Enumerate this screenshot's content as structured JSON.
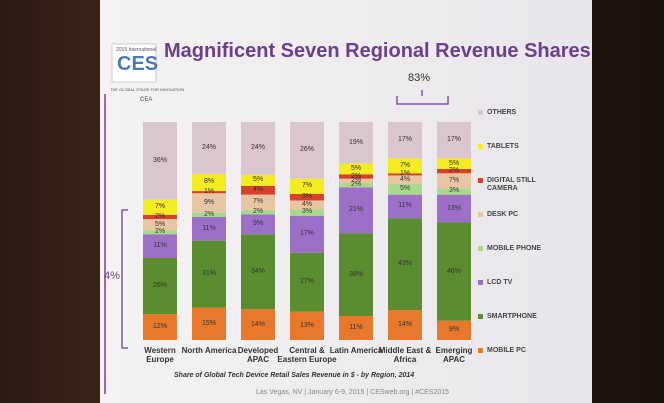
{
  "chart_data": {
    "type": "stacked-bar",
    "title": "Magnificent Seven Regional Revenue Shares",
    "caption": "Share of Global Tech Device Retail Sales Revenue in $ - by Region, 2014",
    "annotations": [
      "83%",
      "4%"
    ],
    "logo": {
      "year": "2015 International",
      "name": "CES",
      "tagline": "THE GLOBAL STAGE FOR INNOVATION",
      "presenter": "CEA"
    },
    "footer": "Las Vegas, NV | January 6-9, 2015 | CESweb.org | #CES2015",
    "categories": [
      "Western\nEurope",
      "North America",
      "Developed\nAPAC",
      "Central &\nEastern Europe",
      "Latin America",
      "Middle East &\nAfrica",
      "Emerging\nAPAC"
    ],
    "series": [
      {
        "name": "MOBILE PC",
        "color": "#e8782a",
        "values": [
          12,
          15,
          14,
          13,
          11,
          14,
          9
        ],
        "value_labels": [
          "12%",
          "15%",
          "14%",
          "13%",
          "11%",
          "14%",
          "9%"
        ]
      },
      {
        "name": "SMARTPHONE",
        "color": "#5b8c2f",
        "values": [
          26,
          31,
          34,
          27,
          38,
          43,
          46
        ],
        "value_labels": [
          "26%",
          "31%",
          "34%",
          "27%",
          "38%",
          "43%",
          "46%"
        ]
      },
      {
        "name": "LCD TV",
        "color": "#9c70c6",
        "values": [
          11,
          11,
          9,
          17,
          21,
          11,
          13
        ],
        "value_labels": [
          "11%",
          "11%",
          "9%",
          "17%",
          "21%",
          "11%",
          "13%"
        ]
      },
      {
        "name": "MOBILE PHONE",
        "color": "#a9d98c",
        "values": [
          2,
          2,
          2,
          3,
          2,
          5,
          3
        ],
        "value_labels": [
          "2%",
          "2%",
          "2%",
          "3%",
          "2%",
          "5%",
          "3%"
        ]
      },
      {
        "name": "DESK PC",
        "color": "#e9c6a3",
        "values": [
          5,
          9,
          7,
          4,
          2,
          4,
          7
        ],
        "value_labels": [
          "5%",
          "9%",
          "7%",
          "4%",
          "2%",
          "4%",
          "7%"
        ]
      },
      {
        "name": "DIGITAL STILL CAMERA",
        "color": "#d8412b",
        "values": [
          2,
          1,
          4,
          3,
          2,
          1,
          2
        ],
        "value_labels": [
          "2%",
          "1%",
          "4%",
          "3%",
          "2%",
          "1%",
          "2%"
        ]
      },
      {
        "name": "TABLETS",
        "color": "#f4ec22",
        "values": [
          7,
          8,
          5,
          7,
          5,
          7,
          5
        ],
        "value_labels": [
          "7%",
          "8%",
          "5%",
          "7%",
          "5%",
          "7%",
          "5%"
        ]
      },
      {
        "name": "OTHERS",
        "color": "#dac6ce",
        "values": [
          36,
          24,
          24,
          26,
          19,
          17,
          17
        ],
        "value_labels": [
          "36%",
          "24%",
          "24%",
          "26%",
          "19%",
          "17%",
          "17%"
        ]
      }
    ]
  }
}
